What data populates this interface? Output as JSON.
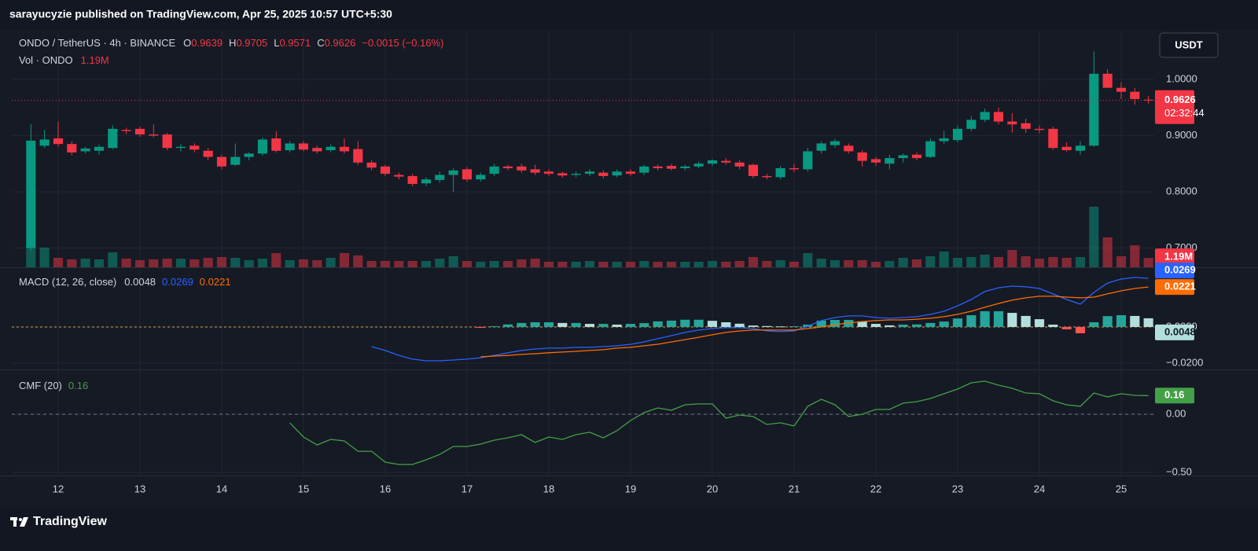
{
  "header": {
    "publisher": "sarayucyzie published on TradingView.com, Apr 25, 2025 10:57 UTC+5:30"
  },
  "footer": {
    "logo": "TradingView"
  },
  "chart_data": {
    "type": "candlestick",
    "symbol": "ONDO / TetherUS · 4h · BINANCE",
    "currency": "USDT",
    "ohlc_labels": [
      "O",
      "H",
      "L",
      "C"
    ],
    "change": "−0.0015 (−0.16%)",
    "countdown": "02:32:44",
    "up_color": "#089981",
    "down_color": "#f23645",
    "x": [
      11.6667,
      11.8333,
      12,
      12.1667,
      12.3333,
      12.5,
      12.6667,
      12.8333,
      13,
      13.1667,
      13.3333,
      13.5,
      13.6667,
      13.8333,
      14,
      14.1667,
      14.3333,
      14.5,
      14.6667,
      14.8333,
      15,
      15.1667,
      15.3333,
      15.5,
      15.6667,
      15.8333,
      16,
      16.1667,
      16.3333,
      16.5,
      16.6667,
      16.8333,
      17,
      17.1667,
      17.3333,
      17.5,
      17.6667,
      17.8333,
      18,
      18.1667,
      18.3333,
      18.5,
      18.6667,
      18.8333,
      19,
      19.1667,
      19.3333,
      19.5,
      19.6667,
      19.8333,
      20,
      20.1667,
      20.3333,
      20.5,
      20.6667,
      20.8333,
      21,
      21.1667,
      21.3333,
      21.5,
      21.6667,
      21.8333,
      22,
      22.1667,
      22.3333,
      22.5,
      22.6667,
      22.8333,
      23,
      23.1667,
      23.3333,
      23.5,
      23.6667,
      23.8333,
      24,
      24.1667,
      24.3333,
      24.5,
      24.6667,
      24.8333,
      25,
      25.1667,
      25.3333
    ],
    "open": [
      0.7,
      0.882,
      0.895,
      0.885,
      0.872,
      0.873,
      0.878,
      0.91,
      0.912,
      0.902,
      0.902,
      0.878,
      0.882,
      0.873,
      0.862,
      0.848,
      0.862,
      0.868,
      0.895,
      0.874,
      0.886,
      0.878,
      0.874,
      0.88,
      0.876,
      0.852,
      0.845,
      0.83,
      0.828,
      0.815,
      0.821,
      0.83,
      0.84,
      0.822,
      0.832,
      0.845,
      0.845,
      0.84,
      0.836,
      0.833,
      0.83,
      0.832,
      0.834,
      0.829,
      0.836,
      0.834,
      0.845,
      0.846,
      0.842,
      0.845,
      0.85,
      0.855,
      0.852,
      0.848,
      0.828,
      0.826,
      0.842,
      0.84,
      0.873,
      0.883,
      0.882,
      0.87,
      0.858,
      0.85,
      0.86,
      0.866,
      0.862,
      0.89,
      0.892,
      0.912,
      0.928,
      0.942,
      0.925,
      0.922,
      0.912,
      0.912,
      0.88,
      0.873,
      0.882,
      1.01,
      0.985,
      0.978,
      0.9639
    ],
    "high": [
      0.92,
      0.91,
      0.925,
      0.89,
      0.88,
      0.884,
      0.918,
      0.914,
      0.916,
      0.92,
      0.905,
      0.885,
      0.886,
      0.878,
      0.866,
      0.886,
      0.87,
      0.896,
      0.908,
      0.89,
      0.89,
      0.882,
      0.884,
      0.895,
      0.89,
      0.856,
      0.848,
      0.834,
      0.832,
      0.826,
      0.836,
      0.842,
      0.844,
      0.834,
      0.85,
      0.848,
      0.85,
      0.848,
      0.84,
      0.836,
      0.836,
      0.84,
      0.838,
      0.84,
      0.84,
      0.848,
      0.849,
      0.85,
      0.848,
      0.854,
      0.858,
      0.86,
      0.856,
      0.85,
      0.832,
      0.846,
      0.85,
      0.878,
      0.89,
      0.894,
      0.886,
      0.874,
      0.862,
      0.866,
      0.868,
      0.87,
      0.895,
      0.908,
      0.918,
      0.935,
      0.948,
      0.95,
      0.94,
      0.93,
      0.918,
      0.916,
      0.888,
      0.89,
      1.05,
      1.018,
      0.995,
      0.985,
      0.9705
    ],
    "low": [
      0.695,
      0.878,
      0.88,
      0.865,
      0.868,
      0.866,
      0.876,
      0.902,
      0.898,
      0.897,
      0.874,
      0.872,
      0.87,
      0.856,
      0.84,
      0.846,
      0.856,
      0.864,
      0.87,
      0.87,
      0.872,
      0.868,
      0.87,
      0.868,
      0.848,
      0.838,
      0.828,
      0.822,
      0.81,
      0.81,
      0.816,
      0.8,
      0.818,
      0.818,
      0.828,
      0.838,
      0.834,
      0.83,
      0.828,
      0.825,
      0.826,
      0.828,
      0.824,
      0.826,
      0.828,
      0.83,
      0.838,
      0.838,
      0.838,
      0.842,
      0.846,
      0.848,
      0.84,
      0.824,
      0.822,
      0.822,
      0.835,
      0.836,
      0.868,
      0.878,
      0.868,
      0.845,
      0.846,
      0.84,
      0.852,
      0.856,
      0.86,
      0.885,
      0.888,
      0.908,
      0.924,
      0.92,
      0.905,
      0.905,
      0.904,
      0.875,
      0.872,
      0.866,
      0.88,
      0.985,
      0.965,
      0.955,
      0.9571
    ],
    "close": [
      0.891,
      0.893,
      0.885,
      0.87,
      0.877,
      0.88,
      0.912,
      0.908,
      0.902,
      0.9,
      0.878,
      0.88,
      0.875,
      0.862,
      0.845,
      0.862,
      0.868,
      0.893,
      0.873,
      0.886,
      0.875,
      0.872,
      0.88,
      0.872,
      0.852,
      0.843,
      0.832,
      0.827,
      0.814,
      0.822,
      0.83,
      0.838,
      0.822,
      0.83,
      0.845,
      0.842,
      0.838,
      0.834,
      0.832,
      0.829,
      0.832,
      0.836,
      0.828,
      0.836,
      0.832,
      0.845,
      0.842,
      0.841,
      0.845,
      0.85,
      0.856,
      0.852,
      0.845,
      0.828,
      0.826,
      0.842,
      0.84,
      0.872,
      0.886,
      0.89,
      0.872,
      0.855,
      0.852,
      0.86,
      0.865,
      0.86,
      0.89,
      0.895,
      0.912,
      0.928,
      0.942,
      0.925,
      0.92,
      0.912,
      0.91,
      0.878,
      0.874,
      0.882,
      1.01,
      0.985,
      0.978,
      0.965,
      0.9626
    ],
    "xlim": [
      11.433,
      25.404
    ],
    "xticks": [
      12,
      13,
      14,
      15,
      16,
      17,
      18,
      19,
      20,
      21,
      22,
      23,
      24,
      25
    ],
    "ylim": [
      0.6657,
      1.0853
    ],
    "yticks": [
      {
        "value": 0.7,
        "label": "0.7000"
      },
      {
        "value": 0.8,
        "label": "0.8000"
      },
      {
        "value": 0.9,
        "label": "0.9000"
      },
      {
        "value": 1.0,
        "label": "1.0000"
      }
    ],
    "grid": true,
    "volume": {
      "name": "Vol · ONDO",
      "last_label": "1.19M",
      "vlim": [
        0,
        30
      ],
      "values": [
        2.7,
        2.5,
        1.2,
        1.0,
        1.1,
        1.0,
        1.9,
        1.1,
        0.9,
        1.0,
        1.1,
        1.1,
        1.0,
        1.2,
        1.3,
        1.2,
        0.9,
        1.1,
        1.8,
        0.9,
        1.0,
        0.9,
        1.2,
        1.8,
        1.5,
        0.8,
        0.8,
        0.8,
        0.8,
        0.8,
        1.1,
        1.4,
        0.8,
        0.7,
        0.8,
        0.8,
        1.0,
        1.1,
        0.7,
        0.7,
        0.7,
        0.8,
        0.7,
        0.7,
        0.7,
        0.8,
        0.7,
        0.7,
        0.7,
        0.7,
        0.8,
        0.7,
        0.8,
        1.3,
        0.8,
        0.9,
        0.7,
        1.8,
        1.1,
        0.9,
        0.9,
        0.9,
        0.7,
        0.8,
        1.2,
        1.0,
        1.4,
        2.0,
        1.2,
        1.3,
        1.6,
        1.3,
        2.2,
        1.4,
        1.1,
        1.3,
        1.2,
        1.3,
        7.7,
        3.8,
        1.4,
        2.8,
        1.19
      ]
    },
    "macd": {
      "name": "MACD (12, 26, close)",
      "ylim": [
        -0.0235,
        0.0326
      ],
      "yticks": [
        {
          "value": -0.02,
          "label": "−0.0200"
        },
        {
          "value": 0,
          "label": "0.0000"
        }
      ],
      "macd": {
        "color": "#2962ff",
        "values": [
          null,
          null,
          null,
          null,
          null,
          null,
          null,
          null,
          null,
          null,
          null,
          null,
          null,
          null,
          null,
          null,
          null,
          null,
          null,
          null,
          null,
          null,
          null,
          null,
          null,
          -0.0109,
          -0.013,
          -0.0157,
          -0.0178,
          -0.0187,
          -0.0187,
          -0.0183,
          -0.0178,
          -0.017,
          -0.0157,
          -0.0143,
          -0.013,
          -0.0122,
          -0.0117,
          -0.0117,
          -0.0113,
          -0.0113,
          -0.0109,
          -0.0104,
          -0.0096,
          -0.0083,
          -0.0065,
          -0.0048,
          -0.003,
          -0.0017,
          -0.0009,
          -0.0004,
          -0.0004,
          -0.0009,
          -0.0022,
          -0.0026,
          -0.0022,
          0.0004,
          0.0035,
          0.0052,
          0.0061,
          0.0061,
          0.0052,
          0.0048,
          0.0052,
          0.0057,
          0.007,
          0.0087,
          0.0117,
          0.0152,
          0.0196,
          0.0217,
          0.0226,
          0.0222,
          0.0213,
          0.0183,
          0.0152,
          0.0126,
          0.0191,
          0.0243,
          0.0265,
          0.0274,
          0.0269
        ]
      },
      "signal": {
        "color": "#ff6d00",
        "values": [
          null,
          null,
          null,
          null,
          null,
          null,
          null,
          null,
          null,
          null,
          null,
          null,
          null,
          null,
          null,
          null,
          null,
          null,
          null,
          null,
          null,
          null,
          null,
          null,
          null,
          null,
          null,
          null,
          null,
          null,
          null,
          null,
          null,
          -0.0165,
          -0.0161,
          -0.0157,
          -0.0152,
          -0.0148,
          -0.0143,
          -0.0139,
          -0.0135,
          -0.013,
          -0.0126,
          -0.0117,
          -0.0113,
          -0.0104,
          -0.0096,
          -0.0083,
          -0.007,
          -0.0057,
          -0.0043,
          -0.003,
          -0.0022,
          -0.0017,
          -0.0017,
          -0.0017,
          -0.0017,
          -0.0009,
          0.0,
          0.0013,
          0.0022,
          0.003,
          0.0035,
          0.0039,
          0.0039,
          0.0043,
          0.0048,
          0.0057,
          0.007,
          0.0087,
          0.0109,
          0.013,
          0.0148,
          0.0161,
          0.017,
          0.017,
          0.0165,
          0.0161,
          0.0165,
          0.0183,
          0.02,
          0.0213,
          0.0221
        ]
      },
      "histogram": {
        "colors": {
          "up_grow": "#26a69a",
          "up_fall": "#b2dfdb",
          "down_grow": "#ff5252",
          "down_fall": "#ffcdd2"
        },
        "values": [
          null,
          null,
          null,
          null,
          null,
          null,
          null,
          null,
          null,
          null,
          null,
          null,
          null,
          null,
          null,
          null,
          null,
          null,
          null,
          null,
          null,
          null,
          null,
          null,
          null,
          null,
          null,
          null,
          null,
          null,
          null,
          null,
          null,
          -0.0005,
          0.0004,
          0.0014,
          0.0022,
          0.0026,
          0.0026,
          0.0022,
          0.0022,
          0.0017,
          0.0017,
          0.0013,
          0.0017,
          0.0021,
          0.0031,
          0.0035,
          0.004,
          0.004,
          0.0034,
          0.0026,
          0.0018,
          0.0008,
          0.0005,
          0.0003,
          0.0004,
          0.0013,
          0.0035,
          0.0039,
          0.0039,
          0.0031,
          0.0017,
          0.0009,
          0.0013,
          0.0014,
          0.0022,
          0.003,
          0.0047,
          0.0065,
          0.0087,
          0.0087,
          0.0078,
          0.0061,
          0.0043,
          0.0013,
          -0.0013,
          -0.0035,
          0.0026,
          0.006,
          0.0065,
          0.0061,
          0.0048
        ]
      }
    },
    "cmf": {
      "name": "CMF (20)",
      "color": "#43a047",
      "ylim": [
        -0.527,
        0.378
      ],
      "yticks": [
        {
          "value": -0.5,
          "label": "−0.50"
        },
        {
          "value": 0,
          "label": "0.00"
        }
      ],
      "values": [
        null,
        null,
        null,
        null,
        null,
        null,
        null,
        null,
        null,
        null,
        null,
        null,
        null,
        null,
        null,
        null,
        null,
        null,
        null,
        -0.074,
        -0.196,
        -0.264,
        -0.216,
        -0.23,
        -0.318,
        -0.318,
        -0.412,
        -0.432,
        -0.432,
        -0.392,
        -0.345,
        -0.277,
        -0.277,
        -0.257,
        -0.223,
        -0.203,
        -0.176,
        -0.243,
        -0.196,
        -0.216,
        -0.176,
        -0.155,
        -0.203,
        -0.142,
        -0.054,
        0.014,
        0.054,
        0.034,
        0.081,
        0.088,
        0.088,
        -0.034,
        -0.007,
        -0.02,
        -0.088,
        -0.074,
        -0.101,
        0.068,
        0.128,
        0.081,
        -0.02,
        0.0,
        0.041,
        0.041,
        0.095,
        0.108,
        0.135,
        0.176,
        0.216,
        0.27,
        0.284,
        0.25,
        0.223,
        0.182,
        0.176,
        0.115,
        0.081,
        0.068,
        0.182,
        0.149,
        0.176,
        0.162,
        0.16
      ]
    }
  }
}
